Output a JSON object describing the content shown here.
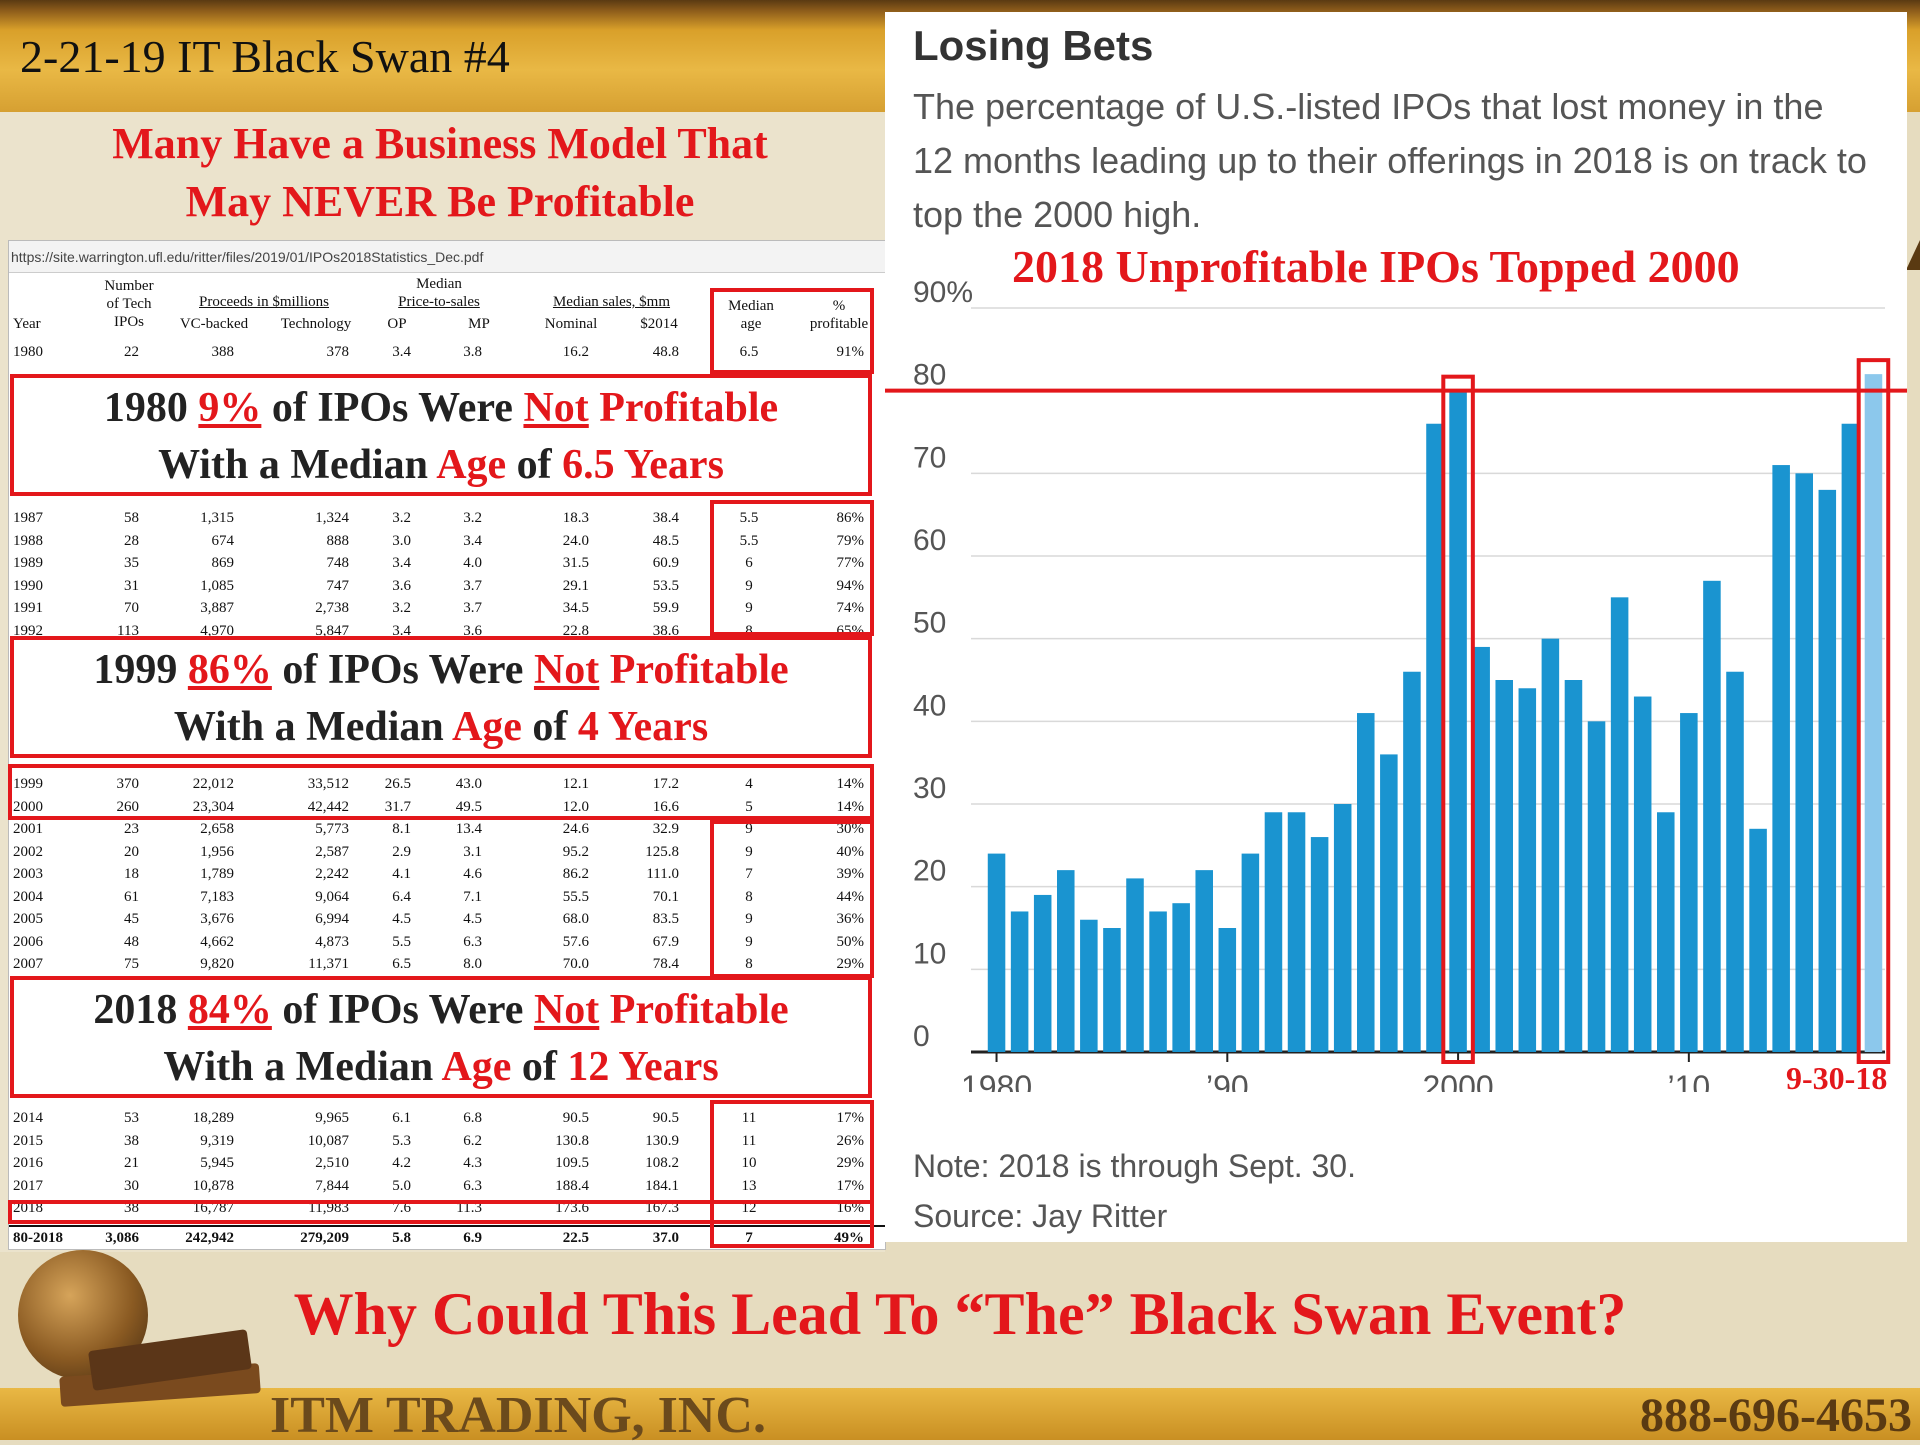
{
  "slide": {
    "title": "2-21-19 IT Black Swan #4",
    "headline_line1": "Many Have a Business Model That",
    "headline_line2": "May NEVER Be Profitable",
    "question": "Why Could This Lead To “The” Black Swan Event?",
    "company": "ITM TRADING, INC.",
    "phone": "888-696-4653"
  },
  "table": {
    "url": "https://site.warrington.ufl.edu/ritter/files/2019/01/IPOs2018Statistics_Dec.pdf",
    "headers": {
      "year": "Year",
      "num_line1": "Number",
      "num_line2": "of Tech",
      "num_line3": "IPOs",
      "proceeds": "Proceeds in $millions",
      "vc": "VC-backed",
      "tech": "Technology",
      "pts_line1": "Median",
      "pts_line2": "Price-to-sales",
      "op": "OP",
      "mp": "MP",
      "sales": "Median sales, $mm",
      "nominal": "Nominal",
      "s2014": "$2014",
      "age_line1": "Median",
      "age_line2": "age",
      "prof_line1": "%",
      "prof_line2": "profitable"
    },
    "rows_a": [
      [
        "1980",
        "22",
        "388",
        "378",
        "3.4",
        "3.8",
        "16.2",
        "48.8",
        "6.5",
        "91%"
      ]
    ],
    "rows_b": [
      [
        "1987",
        "58",
        "1,315",
        "1,324",
        "3.2",
        "3.2",
        "18.3",
        "38.4",
        "5.5",
        "86%"
      ],
      [
        "1988",
        "28",
        "674",
        "888",
        "3.0",
        "3.4",
        "24.0",
        "48.5",
        "5.5",
        "79%"
      ],
      [
        "1989",
        "35",
        "869",
        "748",
        "3.4",
        "4.0",
        "31.5",
        "60.9",
        "6",
        "77%"
      ],
      [
        "1990",
        "31",
        "1,085",
        "747",
        "3.6",
        "3.7",
        "29.1",
        "53.5",
        "9",
        "94%"
      ],
      [
        "1991",
        "70",
        "3,887",
        "2,738",
        "3.2",
        "3.7",
        "34.5",
        "59.9",
        "9",
        "74%"
      ],
      [
        "1992",
        "113",
        "4,970",
        "5,847",
        "3.4",
        "3.6",
        "22.8",
        "38.6",
        "8",
        "65%"
      ]
    ],
    "rows_c": [
      [
        "1999",
        "370",
        "22,012",
        "33,512",
        "26.5",
        "43.0",
        "12.1",
        "17.2",
        "4",
        "14%"
      ],
      [
        "2000",
        "260",
        "23,304",
        "42,442",
        "31.7",
        "49.5",
        "12.0",
        "16.6",
        "5",
        "14%"
      ],
      [
        "2001",
        "23",
        "2,658",
        "5,773",
        "8.1",
        "13.4",
        "24.6",
        "32.9",
        "9",
        "30%"
      ],
      [
        "2002",
        "20",
        "1,956",
        "2,587",
        "2.9",
        "3.1",
        "95.2",
        "125.8",
        "9",
        "40%"
      ],
      [
        "2003",
        "18",
        "1,789",
        "2,242",
        "4.1",
        "4.6",
        "86.2",
        "111.0",
        "7",
        "39%"
      ],
      [
        "2004",
        "61",
        "7,183",
        "9,064",
        "6.4",
        "7.1",
        "55.5",
        "70.1",
        "8",
        "44%"
      ],
      [
        "2005",
        "45",
        "3,676",
        "6,994",
        "4.5",
        "4.5",
        "68.0",
        "83.5",
        "9",
        "36%"
      ],
      [
        "2006",
        "48",
        "4,662",
        "4,873",
        "5.5",
        "6.3",
        "57.6",
        "67.9",
        "9",
        "50%"
      ],
      [
        "2007",
        "75",
        "9,820",
        "11,371",
        "6.5",
        "8.0",
        "70.0",
        "78.4",
        "8",
        "29%"
      ]
    ],
    "rows_d": [
      [
        "2014",
        "53",
        "18,289",
        "9,965",
        "6.1",
        "6.8",
        "90.5",
        "90.5",
        "11",
        "17%"
      ],
      [
        "2015",
        "38",
        "9,319",
        "10,087",
        "5.3",
        "6.2",
        "130.8",
        "130.9",
        "11",
        "26%"
      ],
      [
        "2016",
        "21",
        "5,945",
        "2,510",
        "4.2",
        "4.3",
        "109.5",
        "108.2",
        "10",
        "29%"
      ],
      [
        "2017",
        "30",
        "10,878",
        "7,844",
        "5.0",
        "6.3",
        "188.4",
        "184.1",
        "13",
        "17%"
      ],
      [
        "2018",
        "38",
        "16,787",
        "11,983",
        "7.6",
        "11.3",
        "173.6",
        "167.3",
        "12",
        "16%"
      ]
    ],
    "total_row": [
      "80-2018",
      "3,086",
      "242,942",
      "279,209",
      "5.8",
      "6.9",
      "22.5",
      "37.0",
      "7",
      "49%"
    ]
  },
  "callouts": [
    {
      "year": "1980",
      "pct": "9%",
      "mid": "of IPOs Were",
      "not": "Not",
      "prof": "Profitable",
      "l2a": "With a Median",
      "age": "Age",
      "of": "of",
      "years": "6.5 Years"
    },
    {
      "year": "1999",
      "pct": "86%",
      "mid": "of IPOs Were",
      "not": "Not",
      "prof": "Profitable",
      "l2a": "With a Median",
      "age": "Age",
      "of": "of",
      "years": "4 Years"
    },
    {
      "year": "2018",
      "pct": "84%",
      "mid": "of IPOs Were",
      "not": "Not",
      "prof": "Profitable",
      "l2a": "With a Median",
      "age": "Age",
      "of": "of",
      "years": "12 Years"
    }
  ],
  "chart_panel": {
    "title": "Losing Bets",
    "subtitle": "The percentage of U.S.-listed IPOs that lost money in the 12 months leading up to their offerings in 2018 is on track to top the 2000 high.",
    "overlay": "2018 Unprofitable IPOs Topped 2000",
    "date_label": "9-30-18",
    "note": "Note: 2018 is through Sept. 30.",
    "source": "Source: Jay Ritter"
  },
  "chart_data": {
    "type": "bar",
    "x": [
      1980,
      1981,
      1982,
      1983,
      1984,
      1985,
      1986,
      1987,
      1988,
      1989,
      1990,
      1991,
      1992,
      1993,
      1994,
      1995,
      1996,
      1997,
      1998,
      1999,
      2000,
      2001,
      2002,
      2003,
      2004,
      2005,
      2006,
      2007,
      2008,
      2009,
      2010,
      2011,
      2012,
      2013,
      2014,
      2015,
      2016,
      2017,
      2018
    ],
    "values": [
      24,
      17,
      19,
      22,
      16,
      15,
      21,
      17,
      18,
      22,
      15,
      24,
      29,
      29,
      26,
      30,
      41,
      36,
      46,
      76,
      80,
      49,
      45,
      44,
      50,
      45,
      40,
      55,
      43,
      29,
      41,
      57,
      46,
      27,
      71,
      70,
      68,
      76,
      82
    ],
    "ylim": [
      0,
      90
    ],
    "yticks": [
      "0",
      "10",
      "20",
      "30",
      "40",
      "50",
      "60",
      "70",
      "80",
      "90%"
    ],
    "xtick_labels": [
      {
        "year": 1980,
        "label": "1980"
      },
      {
        "year": 1990,
        "label": "’90"
      },
      {
        "year": 2000,
        "label": "2000"
      },
      {
        "year": 2010,
        "label": "’10"
      }
    ],
    "colors": {
      "bar": "#1a94d0",
      "bar_latest": "#8cc8ec",
      "grid": "#d9d9d9",
      "highlight": "#e3171b"
    },
    "reference_line_value": 80
  }
}
